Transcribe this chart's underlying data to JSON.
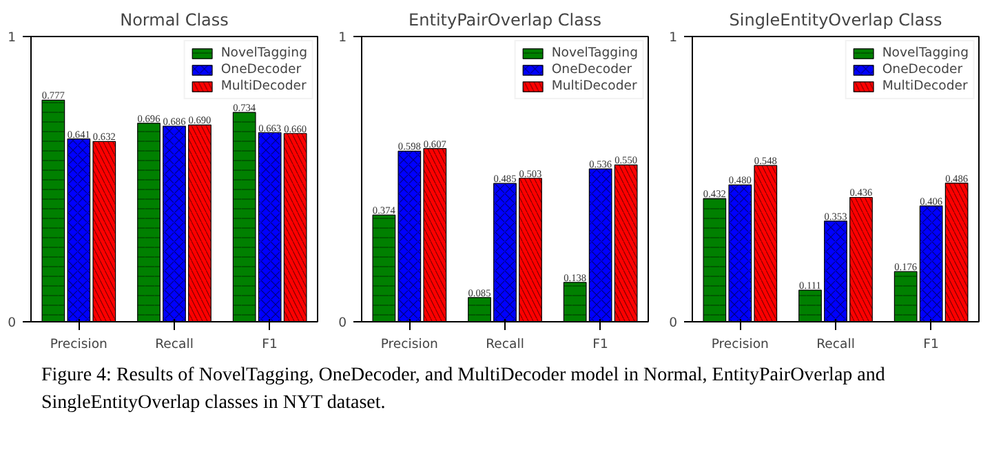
{
  "chart_data": [
    {
      "type": "bar",
      "title": "Normal Class",
      "categories": [
        "Precision",
        "Recall",
        "F1"
      ],
      "series": [
        {
          "name": "NovelTagging",
          "color": "#008000",
          "values": [
            0.777,
            0.696,
            0.734
          ],
          "value_labels": [
            "0.777",
            "0.696",
            "0.734"
          ]
        },
        {
          "name": "OneDecoder",
          "color": "#0000ff",
          "values": [
            0.641,
            0.686,
            0.663
          ],
          "value_labels": [
            "0.641",
            "0.686",
            "0.663"
          ]
        },
        {
          "name": "MultiDecoder",
          "color": "#ff0000",
          "values": [
            0.632,
            0.69,
            0.66
          ],
          "value_labels": [
            "0.632",
            "0.690",
            "0.660"
          ]
        }
      ],
      "ylim": [
        0,
        1
      ],
      "yticks": [
        0,
        1
      ],
      "grid": false,
      "legend": "top right",
      "annotations": [
        "Figure 4: Results of NovelTagging, OneDecoder, and MultiDecoder model in Normal, EntityPairOverlap and SingleEntityOverlap classes in NYT dataset."
      ]
    },
    {
      "type": "bar",
      "title": "EntityPairOverlap Class",
      "categories": [
        "Precision",
        "Recall",
        "F1"
      ],
      "series": [
        {
          "name": "NovelTagging",
          "color": "#008000",
          "values": [
            0.374,
            0.085,
            0.138
          ],
          "value_labels": [
            "0.374",
            "0.085",
            "0.138"
          ]
        },
        {
          "name": "OneDecoder",
          "color": "#0000ff",
          "values": [
            0.598,
            0.485,
            0.536
          ],
          "value_labels": [
            "0.598",
            "0.485",
            "0.536"
          ]
        },
        {
          "name": "MultiDecoder",
          "color": "#ff0000",
          "values": [
            0.607,
            0.503,
            0.55
          ],
          "value_labels": [
            "0.607",
            "0.503",
            "0.550"
          ]
        }
      ],
      "ylim": [
        0,
        1
      ],
      "yticks": [
        0,
        1
      ],
      "grid": false,
      "legend": "top right"
    },
    {
      "type": "bar",
      "title": "SingleEntityOverlap Class",
      "categories": [
        "Precision",
        "Recall",
        "F1"
      ],
      "series": [
        {
          "name": "NovelTagging",
          "color": "#008000",
          "values": [
            0.432,
            0.111,
            0.176
          ],
          "value_labels": [
            "0.432",
            "0.111",
            "0.176"
          ]
        },
        {
          "name": "OneDecoder",
          "color": "#0000ff",
          "values": [
            0.48,
            0.353,
            0.406
          ],
          "value_labels": [
            "0.480",
            "0.353",
            "0.406"
          ]
        },
        {
          "name": "MultiDecoder",
          "color": "#ff0000",
          "values": [
            0.548,
            0.436,
            0.486
          ],
          "value_labels": [
            "0.548",
            "0.436",
            "0.486"
          ]
        }
      ],
      "ylim": [
        0,
        1
      ],
      "yticks": [
        0,
        1
      ],
      "grid": false,
      "legend": "top right"
    }
  ]
}
